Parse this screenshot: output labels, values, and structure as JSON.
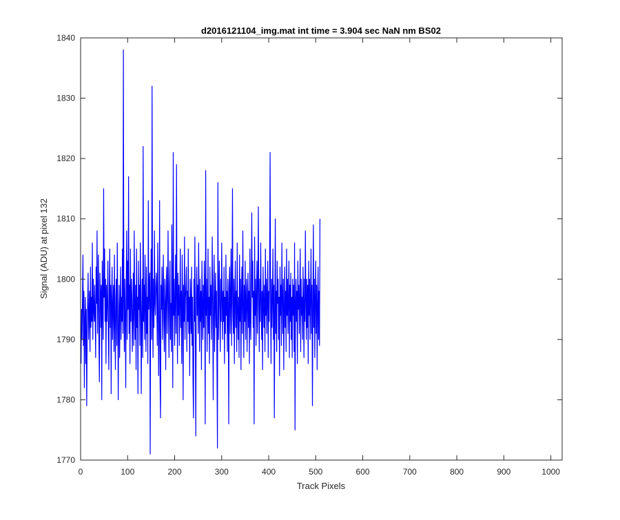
{
  "chart_data": {
    "type": "line",
    "title": "d2016121104_img.mat int time = 3.904 sec  NaN nm BS02",
    "xlabel": "Track Pixels",
    "ylabel": "Signal (ADU) at pixel 132",
    "xlim": [
      0,
      1024
    ],
    "ylim": [
      1770,
      1840
    ],
    "xticks": [
      0,
      100,
      200,
      300,
      400,
      500,
      600,
      700,
      800,
      900,
      1000
    ],
    "yticks": [
      1770,
      1780,
      1790,
      1800,
      1810,
      1820,
      1830,
      1840
    ],
    "grid": false,
    "line_color": "#0000ff",
    "series": [
      {
        "x_start": 1,
        "x_step": 1,
        "values": [
          1786,
          1795,
          1790,
          1797,
          1804,
          1789,
          1798,
          1782,
          1793,
          1797,
          1786,
          1795,
          1779,
          1791,
          1796,
          1801,
          1790,
          1794,
          1798,
          1788,
          1802,
          1792,
          1797,
          1793,
          1806,
          1790,
          1800,
          1795,
          1793,
          1799,
          1794,
          1787,
          1802,
          1796,
          1808,
          1791,
          1797,
          1804,
          1789,
          1783,
          1801,
          1798,
          1792,
          1799,
          1780,
          1803,
          1796,
          1790,
          1815,
          1797,
          1805,
          1793,
          1800,
          1786,
          1799,
          1793,
          1796,
          1803,
          1791,
          1785,
          1798,
          1805,
          1792,
          1799,
          1781,
          1797,
          1802,
          1790,
          1795,
          1799,
          1788,
          1804,
          1793,
          1785,
          1797,
          1800,
          1789,
          1806,
          1796,
          1780,
          1792,
          1799,
          1787,
          1795,
          1802,
          1790,
          1797,
          1793,
          1805,
          1791,
          1838,
          1796,
          1788,
          1800,
          1794,
          1782,
          1799,
          1808,
          1790,
          1803,
          1795,
          1817,
          1791,
          1799,
          1786,
          1805,
          1793,
          1800,
          1797,
          1788,
          1794,
          1801,
          1789,
          1808,
          1796,
          1790,
          1799,
          1785,
          1805,
          1792,
          1797,
          1781,
          1803,
          1795,
          1799,
          1789,
          1806,
          1798,
          1781,
          1794,
          1800,
          1787,
          1822,
          1793,
          1799,
          1790,
          1804,
          1796,
          1788,
          1802,
          1791,
          1797,
          1786,
          1813,
          1795,
          1799,
          1801,
          1771,
          1797,
          1805,
          1790,
          1832,
          1796,
          1787,
          1800,
          1792,
          1808,
          1796,
          1794,
          1799,
          1801,
          1797,
          1789,
          1806,
          1796,
          1784,
          1792,
          1813,
          1783,
          1777,
          1799,
          1795,
          1802,
          1790,
          1797,
          1804,
          1793,
          1788,
          1800,
          1796,
          1785,
          1799,
          1802,
          1791,
          1797,
          1808,
          1794,
          1787,
          1799,
          1803,
          1790,
          1796,
          1788,
          1809,
          1797,
          1782,
          1821,
          1794,
          1800,
          1789,
          1796,
          1804,
          1791,
          1819,
          1797,
          1786,
          1801,
          1794,
          1799,
          1789,
          1796,
          1805,
          1792,
          1798,
          1786,
          1804,
          1797,
          1780,
          1799,
          1793,
          1807,
          1790,
          1797,
          1799,
          1802,
          1788,
          1798,
          1793,
          1805,
          1791,
          1797,
          1784,
          1800,
          1796,
          1791,
          1802,
          1789,
          1797,
          1783,
          1777,
          1800,
          1793,
          1807,
          1790,
          1774,
          1797,
          1802,
          1794,
          1799,
          1791,
          1806,
          1796,
          1788,
          1800,
          1793,
          1798,
          1785,
          1803,
          1796,
          1790,
          1799,
          1792,
          1803,
          1797,
          1776,
          1818,
          1794,
          1800,
          1788,
          1796,
          1805,
          1791,
          1797,
          1786,
          1802,
          1794,
          1799,
          1790,
          1797,
          1807,
          1793,
          1780,
          1799,
          1804,
          1788,
          1796,
          1801,
          1792,
          1798,
          1785,
          1772,
          1816,
          1790,
          1797,
          1803,
          1795,
          1788,
          1800,
          1793,
          1806,
          1797,
          1790,
          1798,
          1793,
          1802,
          1786,
          1797,
          1791,
          1804,
          1794,
          1798,
          1788,
          1800,
          1796,
          1776,
          1799,
          1802,
          1791,
          1797,
          1805,
          1789,
          1798,
          1815,
          1794,
          1791,
          1800,
          1786,
          1797,
          1803,
          1792,
          1798,
          1788,
          1806,
          1795,
          1790,
          1797,
          1787,
          1804,
          1793,
          1800,
          1785,
          1797,
          1802,
          1791,
          1808,
          1796,
          1787,
          1799,
          1793,
          1803,
          1790,
          1797,
          1800,
          1788,
          1796,
          1801,
          1792,
          1798,
          1786,
          1805,
          1794,
          1790,
          1799,
          1811,
          1797,
          1803,
          1792,
          1798,
          1776,
          1807,
          1794,
          1800,
          1789,
          1797,
          1803,
          1791,
          1799,
          1812,
          1795,
          1788,
          1800,
          1793,
          1806,
          1797,
          1790,
          1798,
          1785,
          1802,
          1796,
          1792,
          1799,
          1788,
          1805,
          1794,
          1800,
          1791,
          1797,
          1803,
          1787,
          1798,
          1793,
          1801,
          1821,
          1795,
          1786,
          1800,
          1792,
          1797,
          1805,
          1790,
          1799,
          1777,
          1795,
          1810,
          1791,
          1798,
          1788,
          1803,
          1796,
          1800,
          1790,
          1797,
          1784,
          1802,
          1794,
          1799,
          1789,
          1806,
          1797,
          1791,
          1800,
          1785,
          1795,
          1802,
          1792,
          1798,
          1788,
          1805,
          1794,
          1800,
          1791,
          1797,
          1803,
          1787,
          1799,
          1793,
          1801,
          1790,
          1797,
          1787,
          1800,
          1794,
          1799,
          1788,
          1806,
          1775,
          1796,
          1800,
          1793,
          1798,
          1786,
          1803,
          1795,
          1799,
          1791,
          1797,
          1805,
          1788,
          1800,
          1794,
          1797,
          1790,
          1802,
          1796,
          1787,
          1800,
          1793,
          1808,
          1797,
          1790,
          1800,
          1792,
          1799,
          1786,
          1803,
          1794,
          1800,
          1790,
          1797,
          1805,
          1791,
          1799,
          1779,
          1795,
          1809,
          1792,
          1800,
          1787,
          1797,
          1803,
          1791,
          1799,
          1785,
          1796,
          1802,
          1790,
          1798,
          1789,
          1810
        ]
      }
    ]
  }
}
